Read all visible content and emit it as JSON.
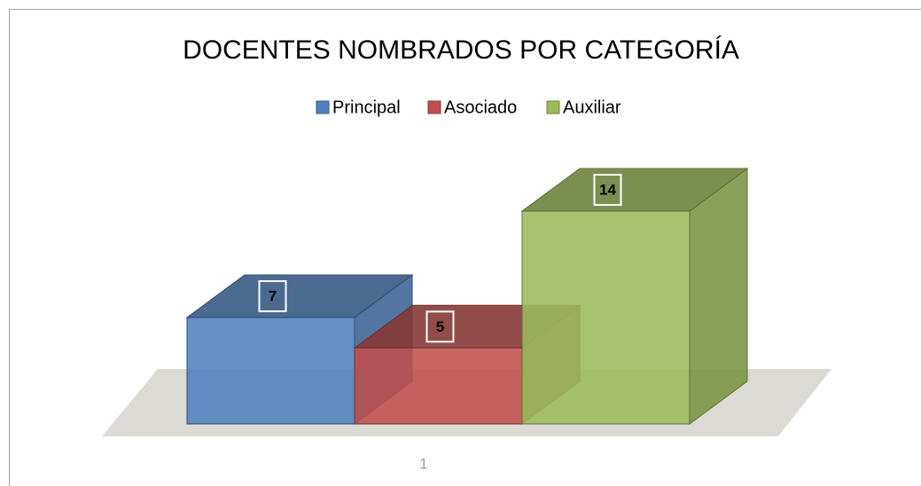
{
  "chart_data": {
    "type": "bar3d",
    "title": "DOCENTES NOMBRADOS POR CATEGORÍA",
    "categories": [
      "1"
    ],
    "series": [
      {
        "name": "Principal",
        "color": "#4f81bd",
        "values": [
          7
        ]
      },
      {
        "name": "Asociado",
        "color": "#c0504d",
        "values": [
          5
        ]
      },
      {
        "name": "Auxiliar",
        "color": "#9bbb59",
        "values": [
          14
        ]
      }
    ],
    "legend": "top"
  }
}
